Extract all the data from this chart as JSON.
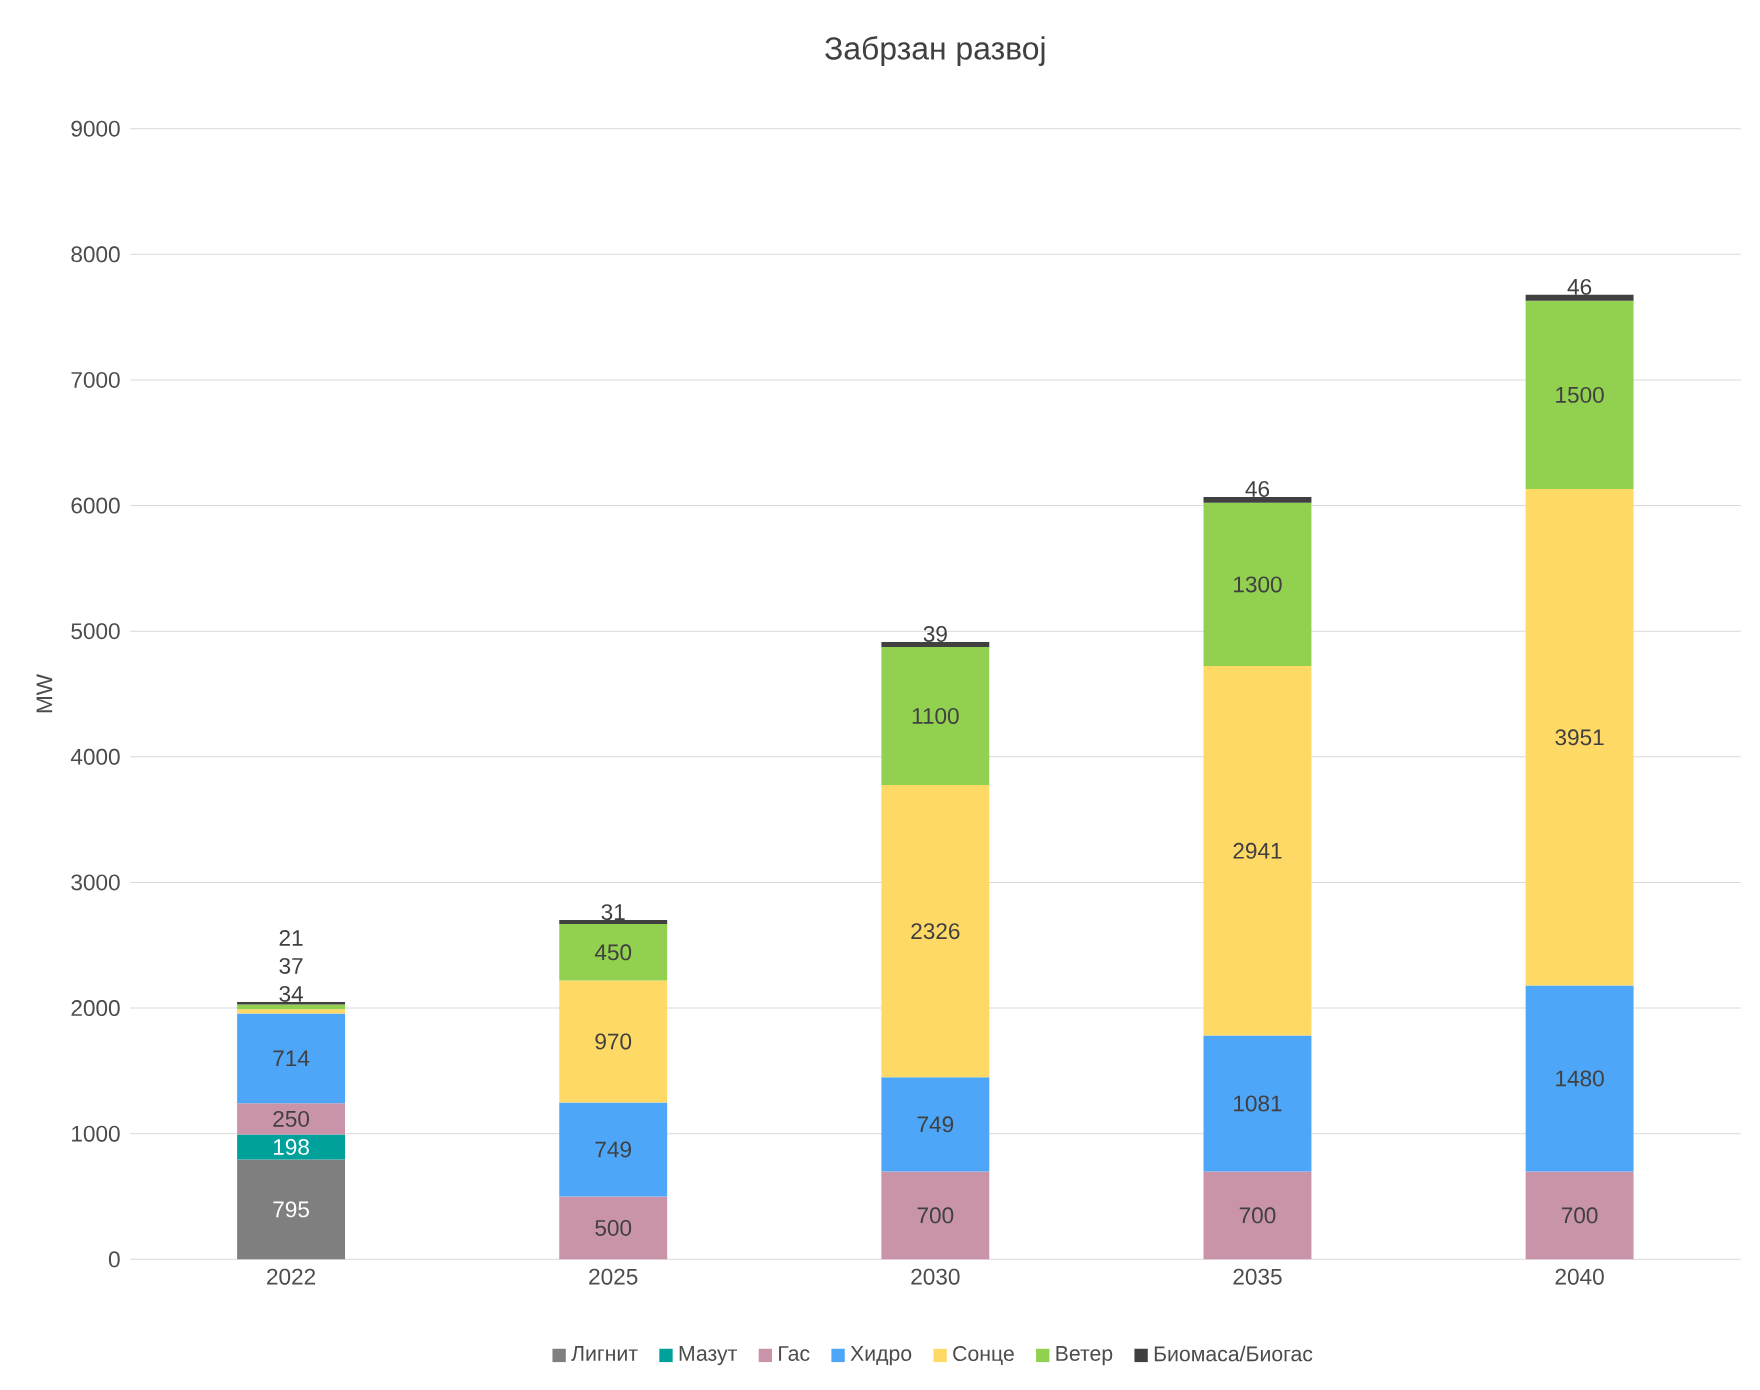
{
  "chart_data": {
    "type": "bar",
    "stacked": true,
    "title": "Забрзан развој",
    "ylabel": "MW",
    "categories": [
      "2022",
      "2025",
      "2030",
      "2035",
      "2040"
    ],
    "series": [
      {
        "name": "Лигнит",
        "color": "#7f7f7f",
        "values": [
          795,
          null,
          null,
          null,
          null
        ]
      },
      {
        "name": "Мазут",
        "color": "#00a19a",
        "values": [
          198,
          null,
          null,
          null,
          null
        ]
      },
      {
        "name": "Гас",
        "color": "#c994aa",
        "values": [
          250,
          500,
          700,
          700,
          700
        ]
      },
      {
        "name": "Хидро",
        "color": "#4ea6f9",
        "values": [
          714,
          749,
          749,
          1081,
          1480
        ]
      },
      {
        "name": "Сонце",
        "color": "#ffd966",
        "values": [
          34,
          970,
          2326,
          2941,
          3951
        ]
      },
      {
        "name": "Ветер",
        "color": "#92d050",
        "values": [
          37,
          450,
          1100,
          1300,
          1500
        ]
      },
      {
        "name": "Биомаса/Биогас",
        "color": "#404040",
        "values": [
          21,
          31,
          39,
          46,
          46
        ]
      }
    ],
    "ylim": [
      0,
      9000
    ],
    "yticks": [
      0,
      1000,
      2000,
      3000,
      4000,
      5000,
      6000,
      7000,
      8000,
      9000
    ],
    "grid": "y",
    "legend": "bottom",
    "data_labels": true
  }
}
